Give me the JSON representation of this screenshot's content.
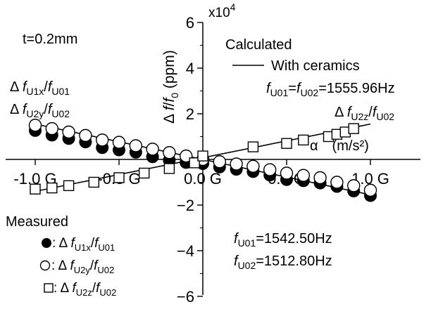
{
  "chart_data": {
    "type": "scatter",
    "x_axis": {
      "label": "α　(m/s²)",
      "range": [
        -1.2,
        1.2
      ],
      "ticks": [
        -1.0,
        -0.5,
        0.0,
        0.5,
        1.0
      ],
      "tick_labels": [
        "-1.0 G",
        "-0.5 G",
        "0.0 G",
        "0.5 G",
        "1.0 G"
      ]
    },
    "y_axis": {
      "label_delta": "Δ ",
      "label_f": "f",
      "label_f0": "f",
      "label_f0_sub": "0",
      "label_unit": " (ppm)",
      "multiplier": "x10",
      "multiplier_exp": "4",
      "range": [
        -6,
        6
      ],
      "ticks": [
        -6,
        -4,
        -2,
        0,
        2,
        4,
        6
      ],
      "tick_labels": [
        "−6",
        "−4",
        "−2",
        "0",
        "2",
        "4",
        "6"
      ]
    },
    "annotations": {
      "thickness": "t=0.2mm",
      "left_label_1": {
        "delta": "Δ ",
        "f": "f",
        "sub": "U1x",
        "slash": "/",
        "f2": "f",
        "sub2": "U01"
      },
      "left_label_2": {
        "delta": "Δ ",
        "f": "f",
        "sub": "U2y",
        "slash": "/",
        "f2": "f",
        "sub2": "U02"
      },
      "right_label": {
        "delta": "Δ ",
        "f": "f",
        "sub": "U2z",
        "slash": "/",
        "f2": "f",
        "sub2": "U02"
      },
      "calculated_title": "Calculated",
      "calculated_line": "With ceramics",
      "calc_freq": {
        "f1": "f",
        "s1": "U01",
        "eq": "=",
        "f2": "f",
        "s2": "U02",
        "val": "=1555.96Hz"
      },
      "measured_title": "Measured",
      "measured_items": [
        {
          "prefix": ": Δ ",
          "f": "f",
          "sub": "U1x",
          "slash": "/",
          "f2": "f",
          "sub2": "U01"
        },
        {
          "prefix": ": Δ ",
          "f": "f",
          "sub": "U2y",
          "slash": "/",
          "f2": "f",
          "sub2": "U02"
        },
        {
          "prefix": ": Δ ",
          "f": "f",
          "sub": "U2z",
          "slash": "/",
          "f2": "f",
          "sub2": "U02"
        }
      ],
      "meas_freq_1": {
        "f": "f",
        "sub": "U01",
        "val": "=1542.50Hz"
      },
      "meas_freq_2": {
        "f": "f",
        "sub": "U02",
        "val": "=1512.80Hz"
      }
    },
    "series": [
      {
        "marker": "filled-circle",
        "x": [
          -1.0,
          -0.9,
          -0.8,
          -0.7,
          -0.6,
          -0.5,
          -0.4,
          -0.3,
          -0.2,
          -0.1,
          0.0,
          0.1,
          0.2,
          0.3,
          0.4,
          0.5,
          0.6,
          0.7,
          0.8,
          0.9,
          1.0
        ],
        "y": [
          1.45,
          1.25,
          1.1,
          0.95,
          0.7,
          0.6,
          0.5,
          0.3,
          0.15,
          0.05,
          0.0,
          -0.15,
          -0.25,
          -0.35,
          -0.5,
          -0.7,
          -0.75,
          -0.85,
          -1.0,
          -1.2,
          -1.4
        ]
      },
      {
        "marker": "open-circle",
        "x": [
          -1.0,
          -0.9,
          -0.8,
          -0.7,
          -0.6,
          -0.5,
          -0.4,
          -0.3,
          -0.2,
          -0.1,
          0.0,
          0.1,
          0.2,
          0.3,
          0.4,
          0.5,
          0.6,
          0.7,
          0.8,
          0.9,
          1.0
        ],
        "y": [
          1.5,
          1.35,
          1.2,
          1.05,
          0.85,
          0.75,
          0.6,
          0.45,
          0.3,
          0.15,
          0.0,
          -0.1,
          -0.2,
          -0.3,
          -0.45,
          -0.6,
          -0.7,
          -0.8,
          -1.0,
          -1.15,
          -1.35
        ]
      },
      {
        "marker": "open-square",
        "x": [
          -1.0,
          -0.9,
          -0.8,
          -0.65,
          -0.5,
          -0.35,
          -0.2,
          -0.05,
          0.0,
          0.3,
          0.5,
          0.6,
          0.75,
          0.8,
          0.85,
          0.9
        ],
        "y": [
          -1.3,
          -1.25,
          -1.15,
          -1.0,
          -0.8,
          -0.6,
          -0.4,
          -0.15,
          0.15,
          0.55,
          0.7,
          0.85,
          1.0,
          1.1,
          1.2,
          1.35
        ]
      }
    ],
    "calculated_lines": [
      {
        "from": [
          -1.0,
          1.55
        ],
        "to": [
          1.0,
          -1.55
        ]
      },
      {
        "from": [
          -1.0,
          -1.4
        ],
        "to": [
          1.0,
          1.55
        ]
      }
    ]
  }
}
